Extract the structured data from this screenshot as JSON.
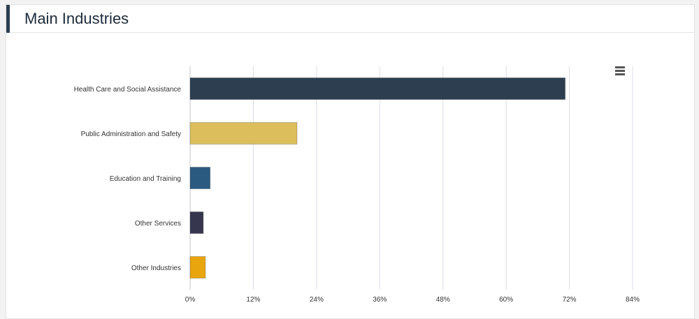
{
  "header": {
    "title": "Main Industries"
  },
  "chart_data": {
    "type": "bar",
    "orientation": "horizontal",
    "title": "",
    "xlabel": "",
    "ylabel": "",
    "categories": [
      "Health Care and Social Assistance",
      "Public Administration and Safety",
      "Education and Training",
      "Other Services",
      "Other Industries"
    ],
    "values": [
      71.2,
      20.3,
      3.8,
      2.5,
      2.9
    ],
    "colors": [
      "#2c3e50",
      "#dcbf5c",
      "#2b5a80",
      "#36364e",
      "#e8a50d"
    ],
    "xlim": [
      0,
      84
    ],
    "xticks": [
      0,
      12,
      24,
      36,
      48,
      60,
      72,
      84
    ],
    "tick_format": "{v}%",
    "grid": true,
    "legend": "none"
  },
  "menu": {
    "icon": "hamburger-menu-icon"
  }
}
